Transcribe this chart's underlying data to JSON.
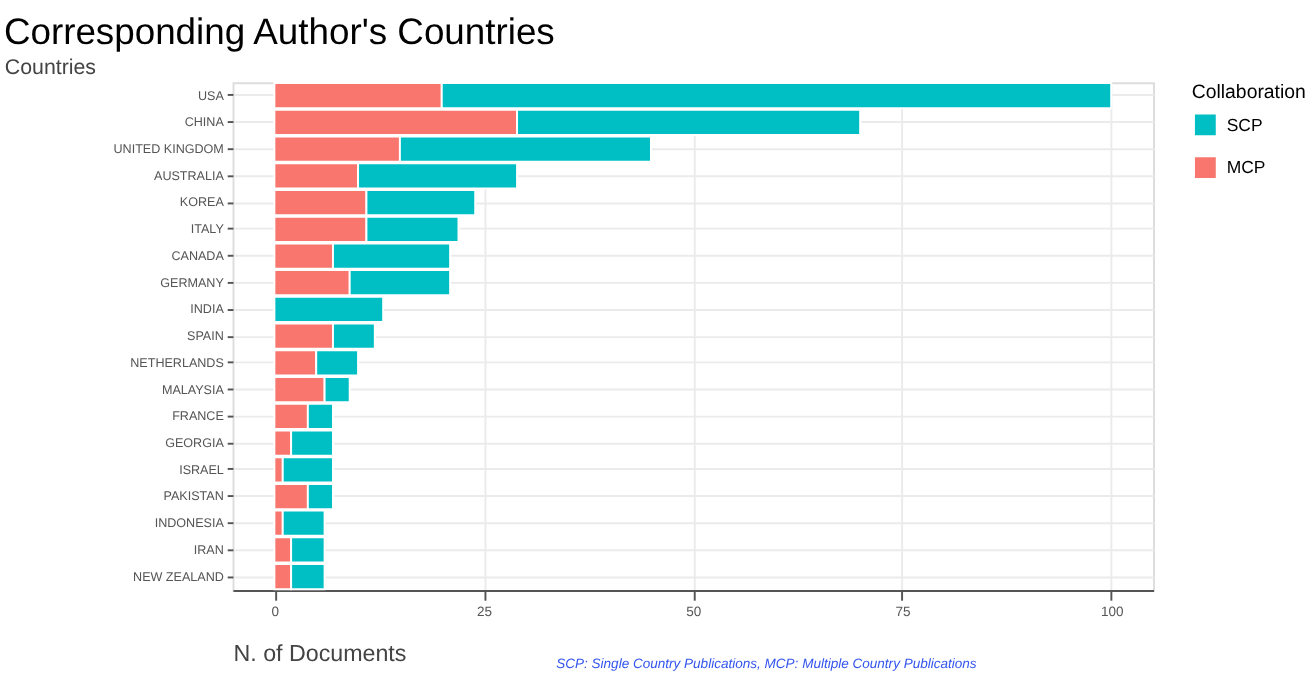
{
  "chart_data": {
    "type": "bar",
    "orientation": "horizontal",
    "stacked": true,
    "title": "Corresponding Author's Countries",
    "xlabel": "N. of Documents",
    "ylabel": "Countries",
    "legend_title": "Collaboration",
    "categories": [
      "USA",
      "CHINA",
      "UNITED KINGDOM",
      "AUSTRALIA",
      "KOREA",
      "ITALY",
      "CANADA",
      "GERMANY",
      "INDIA",
      "SPAIN",
      "NETHERLANDS",
      "MALAYSIA",
      "FRANCE",
      "GEORGIA",
      "ISRAEL",
      "PAKISTAN",
      "INDONESIA",
      "IRAN",
      "NEW ZEALAND"
    ],
    "series": [
      {
        "name": "MCP",
        "color": "#f8766d",
        "values": [
          20,
          29,
          15,
          10,
          11,
          11,
          7,
          9,
          0,
          7,
          5,
          6,
          4,
          2,
          1,
          4,
          1,
          2,
          2
        ]
      },
      {
        "name": "SCP",
        "color": "#00bfc4",
        "values": [
          80,
          41,
          30,
          19,
          13,
          11,
          14,
          12,
          13,
          5,
          5,
          3,
          3,
          5,
          6,
          3,
          5,
          4,
          4
        ]
      }
    ],
    "xlim": [
      -5,
      105
    ],
    "xticks": [
      0,
      25,
      50,
      75,
      100
    ],
    "grid": true,
    "legend": "right",
    "annotations": [
      "SCP: Single Country Publications, MCP: Multiple Country Publications"
    ]
  }
}
